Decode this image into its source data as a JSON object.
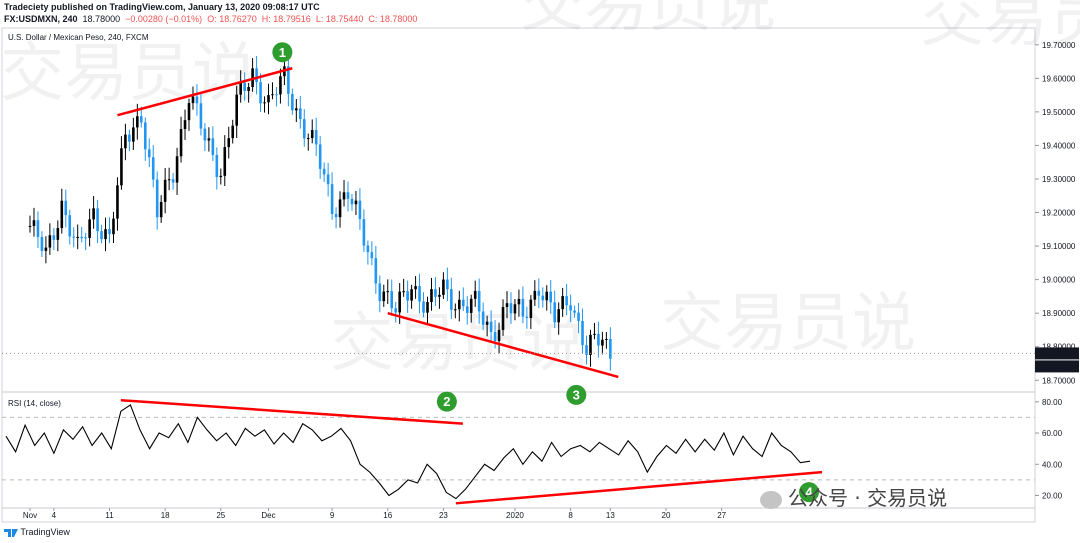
{
  "header": {
    "line1": "Tradeciety published on TradingView.com, January 13, 2020 09:08:17 UTC",
    "symbol": "FX:USDMXN, 240",
    "last": "18.78000",
    "change": "−0.00280 (−0.01%)",
    "open": "O: 18.76270",
    "high": "H: 18.79516",
    "low": "L: 18.75440",
    "close": "C: 18.78000"
  },
  "chart_data": [
    {
      "type": "candlestick",
      "title": "U.S. Dollar / Mexican Peso, 240, FXCM",
      "x_ticks": [
        "Nov",
        "4",
        "11",
        "18",
        "25",
        "Dec",
        "9",
        "16",
        "23",
        "2020",
        "8",
        "13",
        "20",
        "27"
      ],
      "y_ticks": [
        "19.70000",
        "19.60000",
        "19.50000",
        "19.40000",
        "19.30000",
        "19.20000",
        "19.10000",
        "19.00000",
        "18.90000",
        "18.80000",
        "18.70000"
      ],
      "ylim": [
        18.665,
        19.75
      ],
      "last_price": "18.78000",
      "countdown": "51:44",
      "approx_close_path": [
        {
          "x": "Nov 1",
          "y": 19.16
        },
        {
          "x": "Nov 3",
          "y": 19.07
        },
        {
          "x": "Nov 5",
          "y": 19.23
        },
        {
          "x": "Nov 7",
          "y": 19.08
        },
        {
          "x": "Nov 9",
          "y": 19.2
        },
        {
          "x": "Nov 11",
          "y": 19.12
        },
        {
          "x": "Nov 13",
          "y": 19.42
        },
        {
          "x": "Nov 15",
          "y": 19.5
        },
        {
          "x": "Nov 17",
          "y": 19.19
        },
        {
          "x": "Nov 19",
          "y": 19.33
        },
        {
          "x": "Nov 21",
          "y": 19.55
        },
        {
          "x": "Nov 23",
          "y": 19.42
        },
        {
          "x": "Nov 25",
          "y": 19.33
        },
        {
          "x": "Nov 27",
          "y": 19.52
        },
        {
          "x": "Nov 29",
          "y": 19.62
        },
        {
          "x": "Dec 1",
          "y": 19.52
        },
        {
          "x": "Dec 3",
          "y": 19.6
        },
        {
          "x": "Dec 5",
          "y": 19.48
        },
        {
          "x": "Dec 7",
          "y": 19.38
        },
        {
          "x": "Dec 9",
          "y": 19.22
        },
        {
          "x": "Dec 11",
          "y": 19.26
        },
        {
          "x": "Dec 13",
          "y": 19.12
        },
        {
          "x": "Dec 15",
          "y": 18.98
        },
        {
          "x": "Dec 17",
          "y": 18.9
        },
        {
          "x": "Dec 19",
          "y": 18.99
        },
        {
          "x": "Dec 21",
          "y": 18.92
        },
        {
          "x": "Dec 23",
          "y": 18.97
        },
        {
          "x": "Dec 25",
          "y": 18.93
        },
        {
          "x": "Dec 27",
          "y": 18.92
        },
        {
          "x": "Dec 29",
          "y": 18.84
        },
        {
          "x": "Dec 31",
          "y": 18.92
        },
        {
          "x": "Jan 2",
          "y": 18.89
        },
        {
          "x": "Jan 4",
          "y": 18.99
        },
        {
          "x": "Jan 6",
          "y": 18.88
        },
        {
          "x": "Jan 8",
          "y": 18.95
        },
        {
          "x": "Jan 10",
          "y": 18.79
        },
        {
          "x": "Jan 12",
          "y": 18.82
        },
        {
          "x": "Jan 13",
          "y": 18.78
        }
      ],
      "trendlines": [
        {
          "label": "1",
          "from": {
            "x": "Nov 12",
            "y": 19.49
          },
          "to": {
            "x": "Dec 4",
            "y": 19.63
          }
        },
        {
          "label": "3",
          "from": {
            "x": "Dec 16",
            "y": 18.9
          },
          "to": {
            "x": "Jan 14",
            "y": 18.71
          }
        }
      ]
    },
    {
      "type": "line",
      "title": "RSI (14, close)",
      "y_ticks": [
        "80.00",
        "60.00",
        "40.00",
        "20.00"
      ],
      "ylim": [
        12,
        85
      ],
      "levels": [
        70,
        30
      ],
      "values": [
        58,
        48,
        65,
        52,
        60,
        47,
        62,
        56,
        64,
        52,
        60,
        50,
        74,
        78,
        62,
        50,
        60,
        57,
        66,
        54,
        70,
        62,
        55,
        60,
        52,
        63,
        58,
        62,
        53,
        60,
        54,
        66,
        62,
        55,
        58,
        63,
        55,
        40,
        35,
        28,
        20,
        24,
        30,
        28,
        40,
        34,
        22,
        18,
        24,
        32,
        40,
        36,
        44,
        50,
        40,
        48,
        42,
        54,
        45,
        50,
        52,
        48,
        54,
        50,
        46,
        55,
        48,
        35,
        45,
        52,
        47,
        56,
        48,
        56,
        49,
        60,
        46,
        58,
        50,
        45,
        60,
        52,
        48,
        41,
        42
      ],
      "trendlines": [
        {
          "label": "2",
          "from": {
            "index": 12,
            "y": 81
          },
          "to": {
            "index": 40,
            "y": 66
          }
        },
        {
          "label": "4",
          "from": {
            "index": 47,
            "y": 15
          },
          "to": {
            "index": 84,
            "y": 35
          }
        }
      ]
    }
  ],
  "colors": {
    "up": "#000000",
    "down": "#2196f3",
    "trendline": "#ff0000",
    "badge": "#2e9d2e",
    "price_badge": "#131722"
  },
  "watermark": "交易员说",
  "footer": {
    "logo": "TradingView"
  },
  "wechat": {
    "text": "公众号 · 交易员说"
  }
}
